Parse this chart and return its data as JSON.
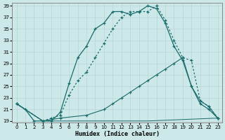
{
  "xlabel": "Humidex (Indice chaleur)",
  "background_color": "#cce8e8",
  "grid_color": "#b8d4d4",
  "line_color": "#1a6b6b",
  "xlim_min": -0.5,
  "xlim_max": 23.5,
  "ylim_min": 18.7,
  "ylim_max": 39.5,
  "yticks": [
    19,
    21,
    23,
    25,
    27,
    29,
    31,
    33,
    35,
    37,
    39
  ],
  "xticks": [
    0,
    1,
    2,
    3,
    4,
    5,
    6,
    7,
    8,
    9,
    10,
    11,
    12,
    13,
    14,
    15,
    16,
    17,
    18,
    19,
    20,
    21,
    22,
    23
  ],
  "curve1_x": [
    0,
    1,
    2,
    3,
    4,
    5,
    6,
    7,
    8,
    9,
    10,
    11,
    12,
    13,
    14,
    15,
    16,
    17,
    18,
    19,
    20,
    21,
    22,
    23
  ],
  "curve1_y": [
    22,
    21,
    19,
    19,
    19,
    20.5,
    25.5,
    30,
    32,
    35,
    36,
    38,
    38,
    37.5,
    38,
    39,
    38.5,
    36,
    32,
    29.5,
    25,
    22,
    21,
    19.5
  ],
  "curve2_x": [
    0,
    3,
    4,
    5,
    6,
    7,
    8,
    9,
    10,
    11,
    12,
    13,
    14,
    15,
    16,
    17,
    18,
    19,
    20,
    21,
    22,
    23
  ],
  "curve2_y": [
    22,
    19,
    19.5,
    20,
    23.5,
    26,
    27.5,
    30,
    32.5,
    35,
    37,
    38,
    38,
    38,
    39,
    36.5,
    33,
    30,
    29.5,
    22.5,
    21.5,
    19.5
  ],
  "curve3_x": [
    0,
    3,
    5,
    8,
    10,
    11,
    12,
    13,
    14,
    15,
    16,
    17,
    18,
    19,
    20,
    21,
    22,
    23
  ],
  "curve3_y": [
    22,
    19,
    19.5,
    20,
    21,
    22,
    23,
    24,
    25,
    26,
    27,
    28,
    29,
    30,
    25,
    22.5,
    21.5,
    19.5
  ],
  "curve4_x": [
    0,
    3,
    10,
    15,
    23
  ],
  "curve4_y": [
    22,
    19,
    19,
    19,
    19.5
  ]
}
